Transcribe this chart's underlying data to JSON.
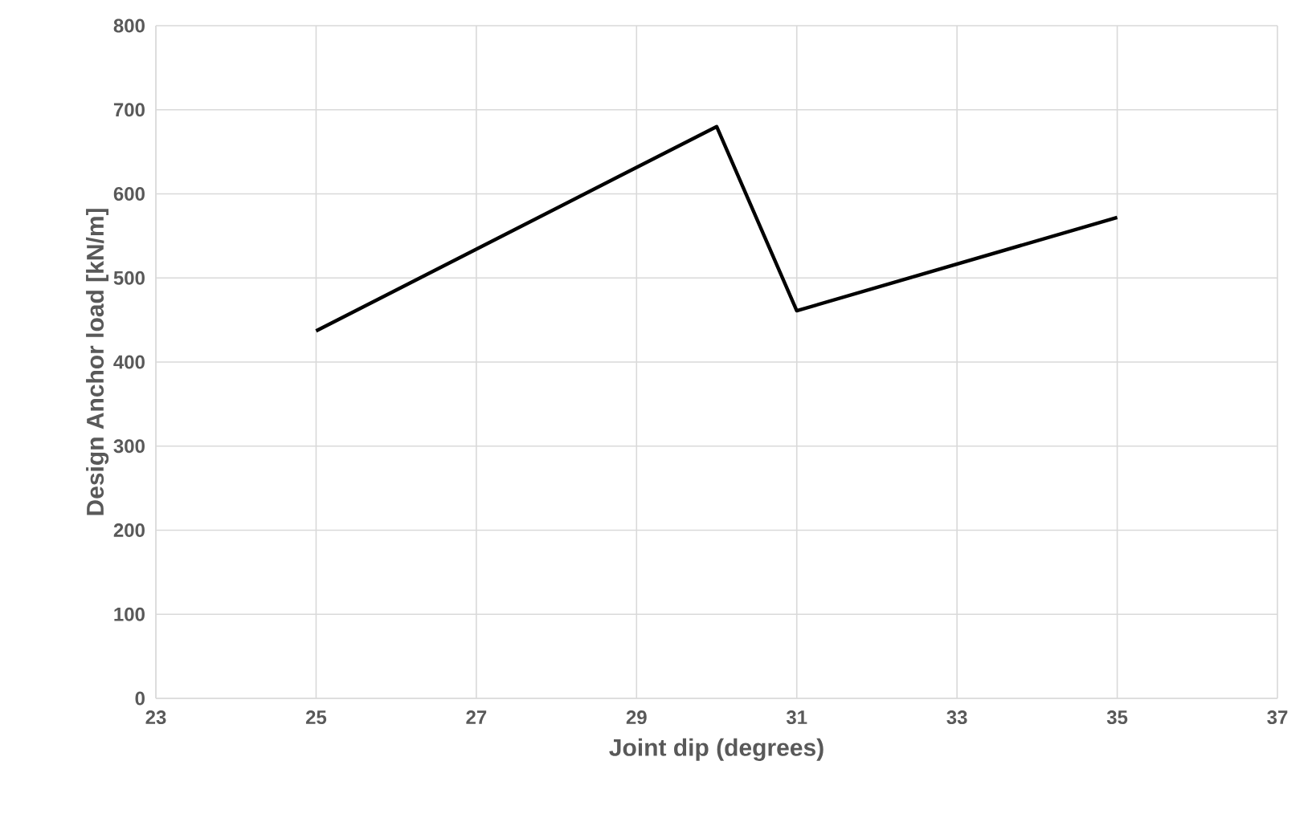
{
  "chart_data": {
    "type": "line",
    "xlabel": "Joint dip (degrees)",
    "ylabel": "Design Anchor load [kN/m]",
    "x": [
      25,
      30,
      31,
      35
    ],
    "series": [
      {
        "color": "#000000",
        "values": [
          437,
          680,
          461,
          572
        ]
      }
    ],
    "xlim": [
      23,
      37
    ],
    "xticks": [
      23,
      25,
      27,
      29,
      31,
      33,
      35,
      37
    ],
    "ylim": [
      0,
      800
    ],
    "yticks": [
      0,
      100,
      200,
      300,
      400,
      500,
      600,
      700,
      800
    ],
    "grid": true,
    "marker": "none",
    "line_style": "solid"
  }
}
